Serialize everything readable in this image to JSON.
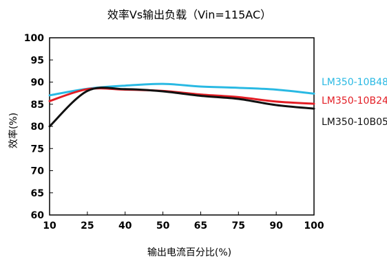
{
  "chart_data": {
    "type": "line",
    "title": "效率Vs输出负载（Vin=115AC）",
    "xlabel": "输出电流百分比(%)",
    "ylabel": "效率(%)",
    "x_ticks": [
      "10",
      "25",
      "40",
      "50",
      "65",
      "75",
      "90",
      "100"
    ],
    "ylim": [
      60,
      100
    ],
    "y_ticks": [
      60,
      65,
      70,
      75,
      80,
      85,
      90,
      95,
      100
    ],
    "grid": false,
    "legend_position": "right",
    "series": [
      {
        "name": "LM350-10B48",
        "color": "#29b9e3",
        "values": [
          87.0,
          88.5,
          89.2,
          89.6,
          89.0,
          88.7,
          88.3,
          87.4
        ]
      },
      {
        "name": "LM350-10B24",
        "color": "#e31d24",
        "values": [
          85.7,
          88.4,
          88.3,
          88.0,
          87.2,
          86.6,
          85.6,
          85.1
        ]
      },
      {
        "name": "LM350-10B05",
        "color": "#111111",
        "values": [
          80.0,
          88.0,
          88.4,
          87.9,
          86.9,
          86.2,
          84.8,
          84.0
        ]
      }
    ]
  }
}
